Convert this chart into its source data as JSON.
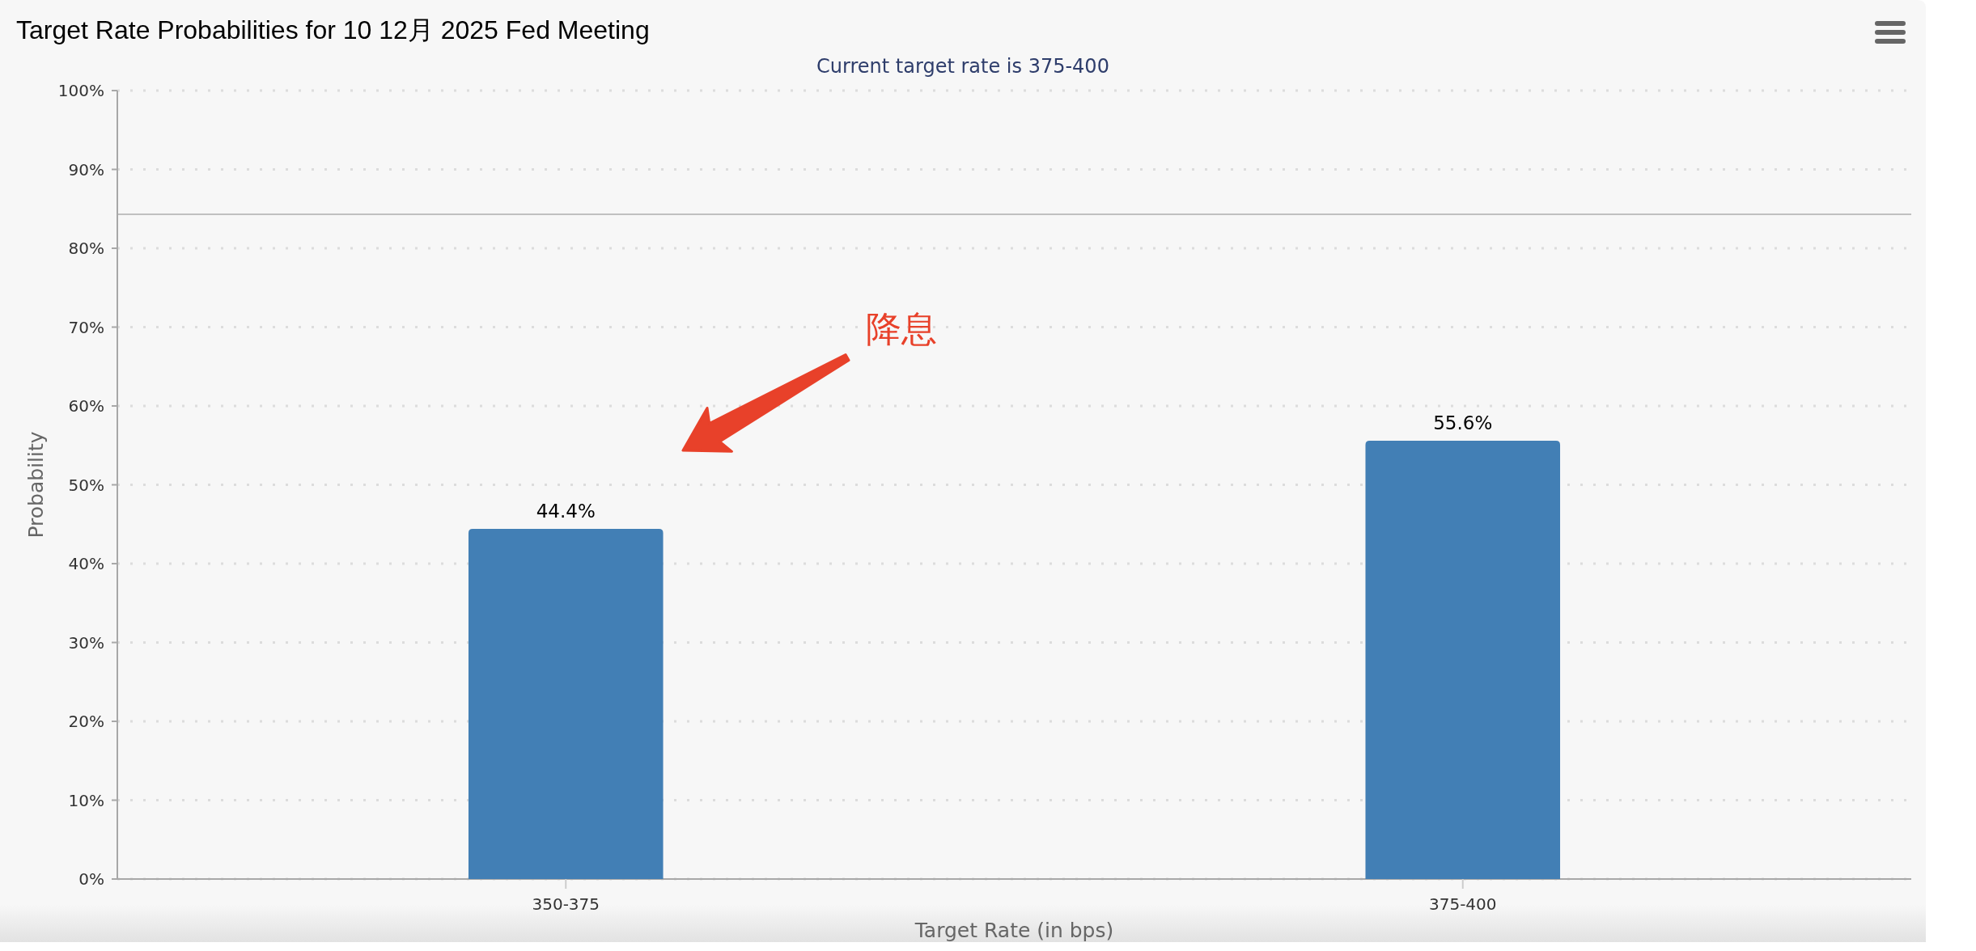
{
  "chart_data": {
    "type": "bar",
    "title": "Target Rate Probabilities for 10 12月 2025 Fed Meeting",
    "subtitle": "Current target rate is 375-400",
    "xlabel": "Target Rate (in bps)",
    "ylabel": "Probability",
    "categories": [
      "350-375",
      "375-400"
    ],
    "values": [
      44.4,
      55.6
    ],
    "value_labels": [
      "44.4%",
      "55.6%"
    ],
    "color": "#427fb5",
    "ylim": [
      0,
      100
    ],
    "yticks": [
      {
        "value": 0,
        "label": "0%"
      },
      {
        "value": 10,
        "label": "10%"
      },
      {
        "value": 20,
        "label": "20%"
      },
      {
        "value": 30,
        "label": "30%"
      },
      {
        "value": 40,
        "label": "40%"
      },
      {
        "value": 50,
        "label": "50%"
      },
      {
        "value": 60,
        "label": "60%"
      },
      {
        "value": 70,
        "label": "70%"
      },
      {
        "value": 80,
        "label": "80%"
      },
      {
        "value": 90,
        "label": "90%"
      },
      {
        "value": 100,
        "label": "100%"
      }
    ],
    "grid": "y",
    "ref_lines": [
      {
        "axis": "y",
        "value": 84.3,
        "color": "#c0c0c0"
      }
    ],
    "annotations": [
      "降息"
    ]
  }
}
